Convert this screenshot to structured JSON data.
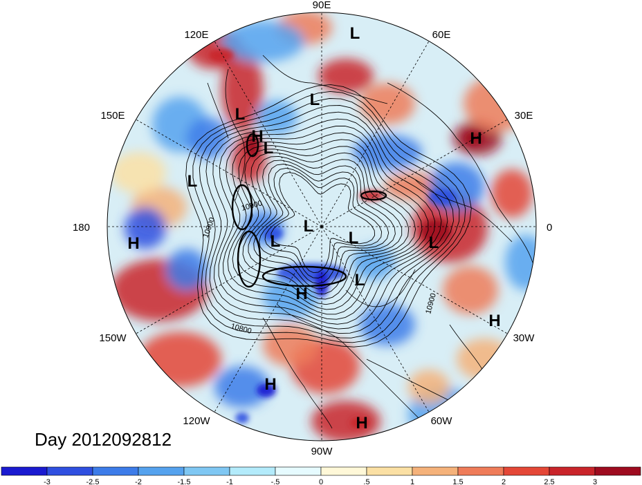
{
  "title": "Day 2012092812",
  "longitude_labels": [
    "90E",
    "60E",
    "30E",
    "0",
    "30W",
    "60W",
    "90W",
    "120W",
    "150W",
    "180",
    "150E",
    "120E"
  ],
  "pressure_centers": [
    {
      "type": "L",
      "lon_lat": "Arabia"
    },
    {
      "type": "H",
      "region": "north-africa"
    },
    {
      "type": "L",
      "region": "central-asia"
    },
    {
      "type": "L",
      "region": "east-asia"
    },
    {
      "type": "L",
      "region": "far-east"
    },
    {
      "type": "L",
      "region": "pacific-west"
    },
    {
      "type": "H",
      "region": "pacific"
    },
    {
      "type": "L",
      "region": "arctic"
    },
    {
      "type": "L",
      "region": "beaufort"
    },
    {
      "type": "L",
      "region": "arctic-atlantic"
    },
    {
      "type": "L",
      "region": "greenland"
    },
    {
      "type": "L",
      "region": "northeast-atlantic"
    },
    {
      "type": "H",
      "region": "atlantic"
    },
    {
      "type": "H",
      "region": "canada"
    },
    {
      "type": "H",
      "region": "east-pacific"
    },
    {
      "type": "H",
      "region": "caribbean"
    },
    {
      "type": "H",
      "region": "asia-north"
    }
  ],
  "contour_labels": [
    "10900",
    "10900",
    "10900",
    "10800"
  ],
  "colorbar": {
    "ticks": [
      "-3",
      "-2.5",
      "-2",
      "-1.5",
      "-1",
      "-.5",
      "0",
      ".5",
      "1",
      "1.5",
      "2",
      "2.5",
      "3"
    ],
    "colors": [
      "#1a1ad0",
      "#2f4fe0",
      "#3d7ce9",
      "#55a2ee",
      "#7fc7f3",
      "#b3ebfb",
      "#e6fbff",
      "#fff8d8",
      "#fbe0a4",
      "#f5b27a",
      "#ef7c59",
      "#e44737",
      "#c9242a",
      "#9e0b1f"
    ]
  }
}
